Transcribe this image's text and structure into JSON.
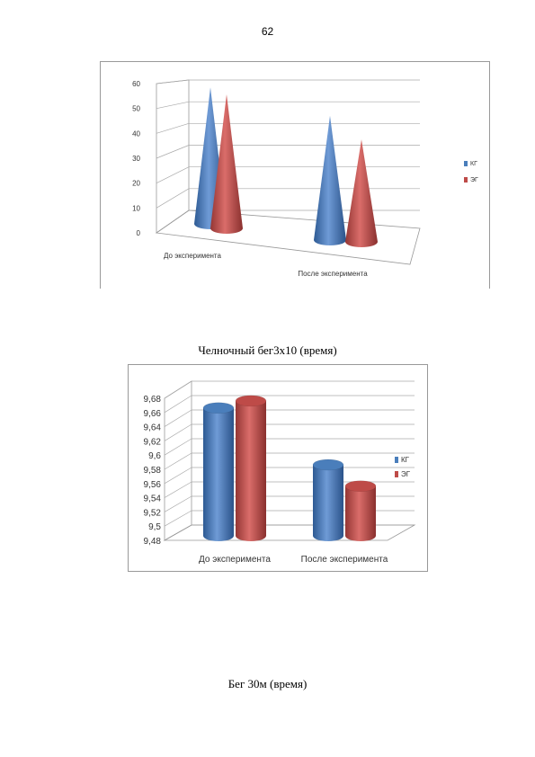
{
  "page": {
    "number": "62"
  },
  "captions": {
    "chart1": "Челночный бег3х10 (время)",
    "chart2": "Бег 30м (время)"
  },
  "colors": {
    "kg": "#4A7EBB",
    "eg": "#BE4B48"
  },
  "chart_data": [
    {
      "type": "bar",
      "shape": "cone",
      "categories": [
        "До эксперимента",
        "После эксперимента"
      ],
      "series": [
        {
          "name": "КГ",
          "values": [
            56,
            51
          ]
        },
        {
          "name": "ЭГ",
          "values": [
            55,
            42
          ]
        }
      ],
      "ylim": [
        0,
        60
      ],
      "yticks": [
        "0",
        "10",
        "20",
        "30",
        "40",
        "50",
        "60"
      ],
      "grid": true,
      "legend": "right"
    },
    {
      "type": "bar",
      "shape": "cylinder",
      "categories": [
        "До эксперимента",
        "После эксперимента"
      ],
      "series": [
        {
          "name": "КГ",
          "values": [
            9.66,
            9.58
          ]
        },
        {
          "name": "ЭГ",
          "values": [
            9.67,
            9.55
          ]
        }
      ],
      "ylim": [
        9.48,
        9.68
      ],
      "yticks": [
        "9,48",
        "9,5",
        "9,52",
        "9,54",
        "9,56",
        "9,58",
        "9,6",
        "9,62",
        "9,64",
        "9,66",
        "9,68"
      ],
      "grid": true,
      "legend": "right"
    }
  ]
}
